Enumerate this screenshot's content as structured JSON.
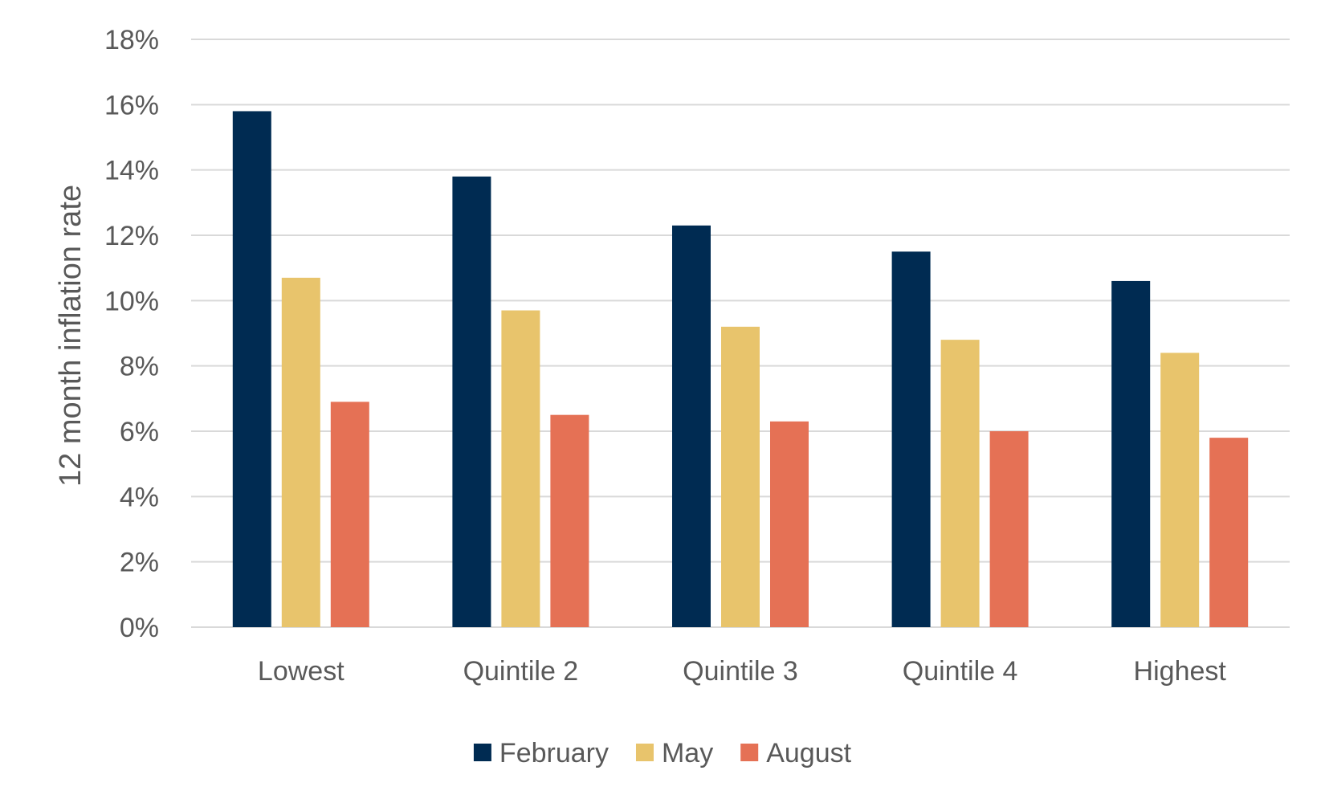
{
  "chart_data": {
    "type": "bar",
    "title": "",
    "xlabel": "",
    "ylabel": "12 month inflation rate",
    "ylim": [
      0,
      18
    ],
    "y_tick_step": 2,
    "y_tick_format": "percent",
    "grid": true,
    "legend_position": "bottom",
    "categories": [
      "Lowest",
      "Quintile 2",
      "Quintile 3",
      "Quintile 4",
      "Highest"
    ],
    "series": [
      {
        "name": "February",
        "color": "#002b52",
        "values": [
          15.8,
          13.8,
          12.3,
          11.5,
          10.6
        ]
      },
      {
        "name": "May",
        "color": "#e8c46c",
        "values": [
          10.7,
          9.7,
          9.2,
          8.8,
          8.4
        ]
      },
      {
        "name": "August",
        "color": "#e57155",
        "values": [
          6.9,
          6.5,
          6.3,
          6.0,
          5.8
        ]
      }
    ]
  }
}
